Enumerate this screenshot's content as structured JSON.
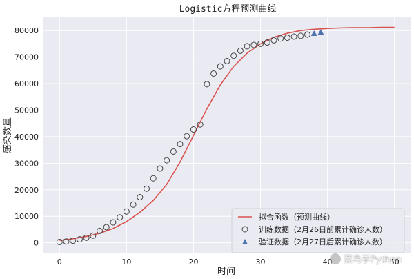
{
  "chart_data": {
    "type": "line",
    "title": "Logistic方程预测曲线",
    "xlabel": "时间",
    "ylabel": "感染数量",
    "xlim": [
      -2.5,
      52.5
    ],
    "ylim": [
      -4000,
      85000
    ],
    "xticks": [
      0,
      10,
      20,
      30,
      40,
      50
    ],
    "yticks": [
      0,
      10000,
      20000,
      30000,
      40000,
      50000,
      60000,
      70000,
      80000
    ],
    "grid": true,
    "legend_position": "lower-right",
    "background": "#eaeaf2",
    "series": [
      {
        "name": "拟合函数（预测曲线）",
        "kind": "line",
        "color": "#d9534f",
        "x": [
          0,
          2,
          4,
          6,
          8,
          10,
          12,
          14,
          16,
          18,
          20,
          22,
          24,
          26,
          28,
          30,
          32,
          34,
          36,
          38,
          40,
          42,
          44,
          46,
          48,
          50
        ],
        "y": [
          900,
          1500,
          2400,
          3600,
          5400,
          8000,
          11500,
          16000,
          22000,
          30500,
          40500,
          50500,
          59500,
          66500,
          71500,
          75000,
          77500,
          79000,
          80000,
          80500,
          80800,
          81000,
          81100,
          81100,
          81200,
          81200
        ]
      },
      {
        "name": "训练数据（2月26日前累计确诊人数）",
        "kind": "scatter-circle",
        "color": "#444444",
        "x": [
          0,
          1,
          2,
          3,
          4,
          5,
          6,
          7,
          8,
          9,
          10,
          11,
          12,
          13,
          14,
          15,
          16,
          17,
          18,
          19,
          20,
          21,
          22,
          23,
          24,
          25,
          26,
          27,
          28,
          29,
          30,
          31,
          32,
          33,
          34,
          35,
          36,
          37
        ],
        "y": [
          300,
          500,
          800,
          1300,
          1900,
          2700,
          4500,
          5900,
          7700,
          9600,
          11800,
          14400,
          17200,
          20400,
          24300,
          28000,
          31100,
          34400,
          37200,
          40200,
          42700,
          44600,
          59800,
          63800,
          66500,
          68500,
          70500,
          72400,
          74100,
          74600,
          75000,
          75500,
          76300,
          77000,
          77300,
          77700,
          78000,
          78500
        ]
      },
      {
        "name": "验证数据（2月27日后累计确诊人数）",
        "kind": "scatter-triangle",
        "color": "#4c72b0",
        "x": [
          38,
          39
        ],
        "y": [
          78900,
          79300
        ]
      }
    ]
  },
  "watermark": {
    "text": "菜鸟学Python"
  }
}
